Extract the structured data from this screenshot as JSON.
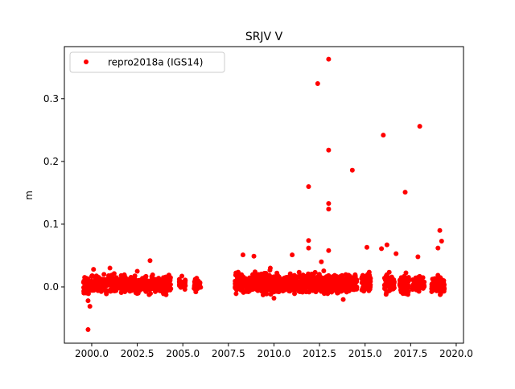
{
  "chart_data": {
    "type": "scatter",
    "title": "SRJV V",
    "xlabel": "",
    "ylabel": "m",
    "xlim": [
      1998.5,
      2020.4
    ],
    "ylim": [
      -0.0897,
      0.383
    ],
    "xticks": [
      2000.0,
      2002.5,
      2005.0,
      2007.5,
      2010.0,
      2012.5,
      2015.0,
      2017.5,
      2020.0
    ],
    "xtick_labels": [
      "2000.0",
      "2002.5",
      "2005.0",
      "2007.5",
      "2010.0",
      "2012.5",
      "2015.0",
      "2017.5",
      "2020.0"
    ],
    "yticks": [
      0.0,
      0.1,
      0.2,
      0.3
    ],
    "ytick_labels": [
      "0.0",
      "0.1",
      "0.2",
      "0.3"
    ],
    "grid": false,
    "legend": {
      "placement": "top-left",
      "entries": [
        "repro2018a (IGS14)"
      ]
    },
    "series": [
      {
        "name": "repro2018a (IGS14)",
        "color": "#ff0000",
        "dense_segments": [
          {
            "start": 1999.55,
            "end": 2004.35,
            "mean": 0.004,
            "spread": 0.011,
            "count": 520
          },
          {
            "start": 2004.8,
            "end": 2005.15,
            "mean": 0.004,
            "spread": 0.009,
            "count": 30
          },
          {
            "start": 2005.6,
            "end": 2006.0,
            "mean": 0.002,
            "spread": 0.008,
            "count": 30
          },
          {
            "start": 2007.85,
            "end": 2014.55,
            "mean": 0.006,
            "spread": 0.012,
            "count": 900
          },
          {
            "start": 2014.8,
            "end": 2015.3,
            "mean": 0.006,
            "spread": 0.012,
            "count": 70
          },
          {
            "start": 2016.05,
            "end": 2016.6,
            "mean": 0.005,
            "spread": 0.011,
            "count": 70
          },
          {
            "start": 2016.9,
            "end": 2017.4,
            "mean": 0.004,
            "spread": 0.011,
            "count": 70
          },
          {
            "start": 2017.6,
            "end": 2018.25,
            "mean": 0.005,
            "spread": 0.01,
            "count": 70
          },
          {
            "start": 2018.65,
            "end": 2019.35,
            "mean": 0.004,
            "spread": 0.011,
            "count": 100
          }
        ],
        "points": [
          [
            2013.0,
            0.363
          ],
          [
            2012.4,
            0.324
          ],
          [
            2013.0,
            0.218
          ],
          [
            2016.0,
            0.242
          ],
          [
            2018.0,
            0.256
          ],
          [
            2014.3,
            0.186
          ],
          [
            2011.9,
            0.16
          ],
          [
            2017.2,
            0.151
          ],
          [
            2013.0,
            0.133
          ],
          [
            2013.0,
            0.124
          ],
          [
            2019.1,
            0.09
          ],
          [
            2011.9,
            0.074
          ],
          [
            2019.2,
            0.073
          ],
          [
            2016.2,
            0.067
          ],
          [
            2015.1,
            0.063
          ],
          [
            2019.0,
            0.062
          ],
          [
            2011.9,
            0.062
          ],
          [
            2015.9,
            0.061
          ],
          [
            2013.0,
            0.058
          ],
          [
            2008.3,
            0.051
          ],
          [
            2008.9,
            0.049
          ],
          [
            2011.0,
            0.051
          ],
          [
            2016.7,
            0.053
          ],
          [
            2017.9,
            0.048
          ],
          [
            2003.2,
            0.042
          ],
          [
            1999.8,
            -0.068
          ],
          [
            1999.9,
            -0.031
          ],
          [
            1999.8,
            -0.022
          ],
          [
            2013.8,
            -0.02
          ],
          [
            2010.0,
            -0.018
          ],
          [
            2000.1,
            0.028
          ],
          [
            2001.0,
            0.03
          ],
          [
            2002.5,
            0.025
          ],
          [
            2009.8,
            0.03
          ],
          [
            2012.6,
            0.04
          ]
        ]
      }
    ]
  }
}
